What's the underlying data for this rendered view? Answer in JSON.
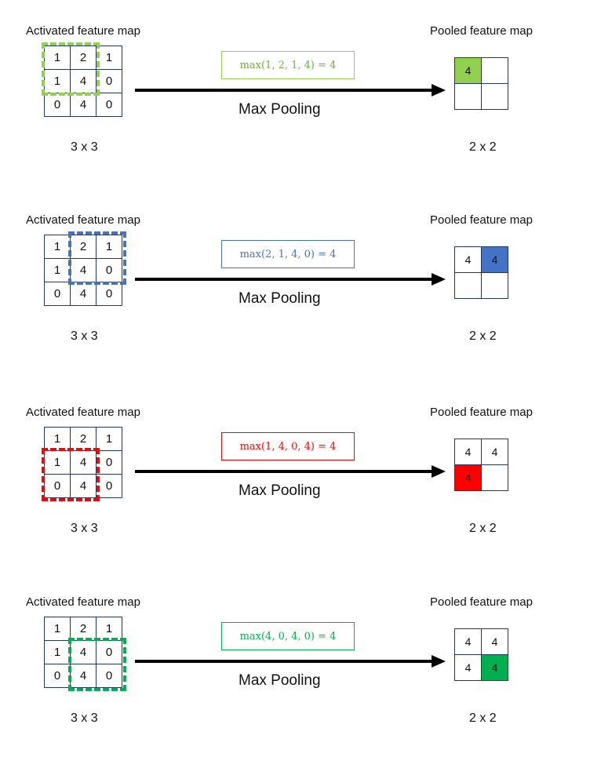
{
  "labels": {
    "input_title": "Activated feature map",
    "output_title": "Pooled feature map",
    "operation": "Max Pooling",
    "input_size": "3 x 3",
    "output_size": "2 x 2"
  },
  "input_matrix": [
    [
      "1",
      "2",
      "1"
    ],
    [
      "1",
      "4",
      "0"
    ],
    [
      "0",
      "4",
      "0"
    ]
  ],
  "steps": [
    {
      "formula": "max(1, 2, 1, 4) = 4",
      "color": "#92d050",
      "formula_color": "#70ad47",
      "window_origin": [
        0,
        0
      ],
      "pooled": [
        [
          "4",
          ""
        ],
        [
          "",
          ""
        ]
      ],
      "highlight_cell": [
        0,
        0
      ]
    },
    {
      "formula": "max(2, 1, 4, 0) = 4",
      "color": "#4472c4",
      "formula_color": "#4472c4",
      "window_origin": [
        0,
        1
      ],
      "pooled": [
        [
          "4",
          "4"
        ],
        [
          "",
          ""
        ]
      ],
      "highlight_cell": [
        0,
        1
      ]
    },
    {
      "formula": "max(1, 4, 0, 4) = 4",
      "color": "#ff0000",
      "formula_color": "#ff0000",
      "window_origin": [
        1,
        0
      ],
      "pooled": [
        [
          "4",
          "4"
        ],
        [
          "4",
          ""
        ]
      ],
      "highlight_cell": [
        1,
        0
      ]
    },
    {
      "formula": "max(4, 0, 4, 0) = 4",
      "color": "#00b050",
      "formula_color": "#00b050",
      "window_origin": [
        1,
        1
      ],
      "pooled": [
        [
          "4",
          "4"
        ],
        [
          "4",
          "4"
        ]
      ],
      "highlight_cell": [
        1,
        1
      ]
    }
  ]
}
